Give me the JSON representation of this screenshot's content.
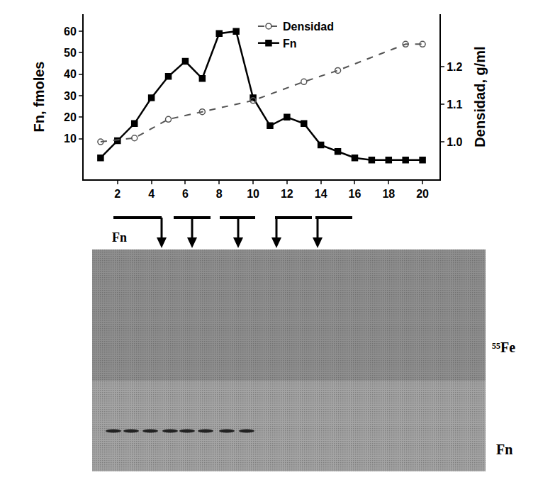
{
  "chart_data": {
    "type": "line",
    "x": [
      1,
      2,
      3,
      4,
      5,
      6,
      7,
      8,
      9,
      10,
      11,
      12,
      13,
      14,
      15,
      16,
      17,
      18,
      19,
      20
    ],
    "xlim": [
      0,
      21
    ],
    "xticks": [
      2,
      4,
      6,
      8,
      10,
      12,
      14,
      16,
      18,
      20
    ],
    "ylim": [
      -9,
      68
    ],
    "yticks": [
      10,
      20,
      30,
      40,
      50,
      60
    ],
    "y_label": "Fn, fmoles",
    "y2_label": "Densidad, g/ml",
    "y2lim": [
      0.9,
      1.34
    ],
    "y2ticks": [
      {
        "value": 1.0,
        "label": "1.0"
      },
      1.1,
      {
        "value": 1.2,
        "label": "1.2"
      }
    ],
    "legend": "top",
    "grid": false,
    "series": [
      {
        "name": "Densidad",
        "axis": "y2",
        "color": "#555555",
        "marker": "circle-open",
        "line_style": "dash",
        "x": [
          1,
          3,
          5,
          7,
          10,
          13,
          15,
          19,
          20
        ],
        "values": [
          1.0,
          1.01,
          1.06,
          1.08,
          1.11,
          1.16,
          1.19,
          1.26,
          1.26
        ]
      },
      {
        "name": "Fn",
        "color": "#000000",
        "marker": "square",
        "line_style": "solid",
        "values": [
          1,
          9,
          17,
          29,
          39,
          46,
          38,
          59,
          60,
          29,
          16,
          20,
          17,
          7,
          4,
          1,
          0,
          0,
          0,
          0
        ]
      }
    ]
  },
  "gel": {
    "fraction_label": "Fn",
    "lanes": [
      "⁵⁵Fe",
      "Fn"
    ]
  }
}
